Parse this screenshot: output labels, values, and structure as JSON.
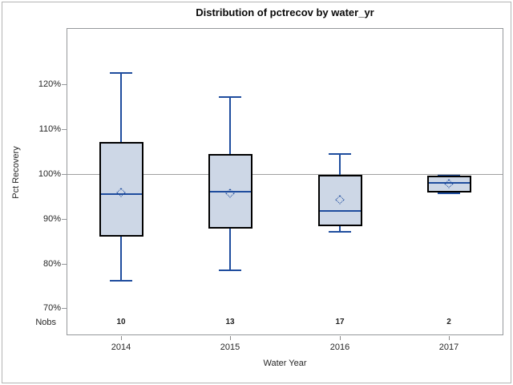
{
  "figure": {
    "background": "#ffffff",
    "outer_border_color": "#b4b4b4"
  },
  "chart_data": {
    "type": "box",
    "title": "Distribution of pctrecov by water_yr",
    "xlabel": "Water Year",
    "ylabel": "Pct Recovery",
    "nobs_row_label": "Nobs",
    "ylim": [
      64.0,
      132.5
    ],
    "yticks": [
      70,
      80,
      90,
      100,
      110,
      120
    ],
    "ytick_suffix": "%",
    "reference_line": 100,
    "grid": false,
    "categories": [
      "2014",
      "2015",
      "2016",
      "2017"
    ],
    "groups": [
      {
        "year": "2014",
        "nobs": "10",
        "whisker_low": 76.2,
        "q1": 86.0,
        "median": 95.5,
        "mean": 95.9,
        "q3": 107.1,
        "whisker_high": 122.5
      },
      {
        "year": "2015",
        "nobs": "13",
        "whisker_low": 78.4,
        "q1": 87.7,
        "median": 96.1,
        "mean": 95.6,
        "q3": 104.5,
        "whisker_high": 117.1
      },
      {
        "year": "2016",
        "nobs": "17",
        "whisker_low": 87.1,
        "q1": 88.3,
        "median": 91.7,
        "mean": 94.2,
        "q3": 99.7,
        "whisker_high": 104.4
      },
      {
        "year": "2017",
        "nobs": "2",
        "whisker_low": 95.7,
        "q1": 95.9,
        "median": 97.9,
        "mean": 97.8,
        "q3": 99.6,
        "whisker_high": 99.6
      }
    ],
    "colors": {
      "box_fill": "#cdd7e6",
      "box_border": "#000000",
      "line_blue": "#1f4d9e",
      "frame_gray": "#95989b",
      "reference_gray": "#a0a0a0",
      "tick_gray": "#8b8b8b"
    }
  }
}
